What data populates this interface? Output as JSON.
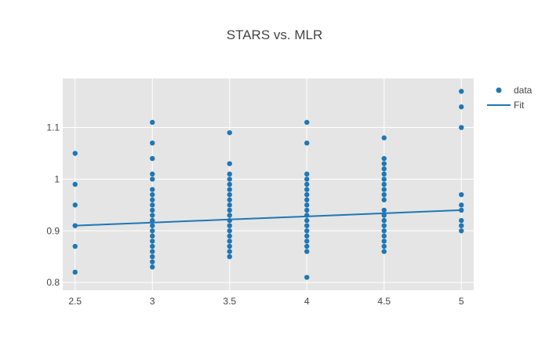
{
  "chart_data": {
    "type": "scatter",
    "title": "STARS vs. MLR",
    "xlabel": "",
    "ylabel": "",
    "xlim": [
      2.42,
      5.08
    ],
    "ylim": [
      0.785,
      1.195
    ],
    "x_ticks": [
      2.5,
      3,
      3.5,
      4,
      4.5,
      5
    ],
    "x_tick_labels": [
      "2.5",
      "3",
      "3.5",
      "4",
      "4.5",
      "5"
    ],
    "y_ticks": [
      0.8,
      0.9,
      1.0,
      1.1
    ],
    "y_tick_labels": [
      "0.8",
      "0.9",
      "1",
      "1.1"
    ],
    "grid": true,
    "legend": {
      "position": "top-right",
      "entries": [
        "data",
        "Fit"
      ]
    },
    "series": [
      {
        "name": "data",
        "mode": "markers",
        "color": "#1f77b4",
        "points": [
          [
            2.5,
            1.05
          ],
          [
            2.5,
            0.99
          ],
          [
            2.5,
            0.95
          ],
          [
            2.5,
            0.91
          ],
          [
            2.5,
            0.87
          ],
          [
            2.5,
            0.82
          ],
          [
            3,
            1.11
          ],
          [
            3,
            1.07
          ],
          [
            3,
            1.04
          ],
          [
            3,
            1.01
          ],
          [
            3,
            1.0
          ],
          [
            3,
            0.98
          ],
          [
            3,
            0.97
          ],
          [
            3,
            0.96
          ],
          [
            3,
            0.95
          ],
          [
            3,
            0.94
          ],
          [
            3,
            0.93
          ],
          [
            3,
            0.92
          ],
          [
            3,
            0.91
          ],
          [
            3,
            0.9
          ],
          [
            3,
            0.89
          ],
          [
            3,
            0.88
          ],
          [
            3,
            0.87
          ],
          [
            3,
            0.86
          ],
          [
            3,
            0.85
          ],
          [
            3,
            0.84
          ],
          [
            3,
            0.83
          ],
          [
            3.5,
            1.09
          ],
          [
            3.5,
            1.03
          ],
          [
            3.5,
            1.01
          ],
          [
            3.5,
            1.0
          ],
          [
            3.5,
            0.99
          ],
          [
            3.5,
            0.98
          ],
          [
            3.5,
            0.97
          ],
          [
            3.5,
            0.96
          ],
          [
            3.5,
            0.95
          ],
          [
            3.5,
            0.94
          ],
          [
            3.5,
            0.93
          ],
          [
            3.5,
            0.92
          ],
          [
            3.5,
            0.91
          ],
          [
            3.5,
            0.9
          ],
          [
            3.5,
            0.89
          ],
          [
            3.5,
            0.88
          ],
          [
            3.5,
            0.87
          ],
          [
            3.5,
            0.86
          ],
          [
            3.5,
            0.85
          ],
          [
            4,
            1.11
          ],
          [
            4,
            1.07
          ],
          [
            4,
            1.01
          ],
          [
            4,
            1.0
          ],
          [
            4,
            0.99
          ],
          [
            4,
            0.98
          ],
          [
            4,
            0.97
          ],
          [
            4,
            0.96
          ],
          [
            4,
            0.95
          ],
          [
            4,
            0.94
          ],
          [
            4,
            0.93
          ],
          [
            4,
            0.92
          ],
          [
            4,
            0.91
          ],
          [
            4,
            0.9
          ],
          [
            4,
            0.89
          ],
          [
            4,
            0.88
          ],
          [
            4,
            0.87
          ],
          [
            4,
            0.86
          ],
          [
            4,
            0.81
          ],
          [
            4.5,
            1.08
          ],
          [
            4.5,
            1.04
          ],
          [
            4.5,
            1.03
          ],
          [
            4.5,
            1.02
          ],
          [
            4.5,
            1.01
          ],
          [
            4.5,
            1.0
          ],
          [
            4.5,
            0.99
          ],
          [
            4.5,
            0.98
          ],
          [
            4.5,
            0.97
          ],
          [
            4.5,
            0.96
          ],
          [
            4.5,
            0.94
          ],
          [
            4.5,
            0.93
          ],
          [
            4.5,
            0.92
          ],
          [
            4.5,
            0.91
          ],
          [
            4.5,
            0.9
          ],
          [
            4.5,
            0.89
          ],
          [
            4.5,
            0.88
          ],
          [
            4.5,
            0.87
          ],
          [
            4.5,
            0.86
          ],
          [
            5,
            1.17
          ],
          [
            5,
            1.14
          ],
          [
            5,
            1.1
          ],
          [
            5,
            0.97
          ],
          [
            5,
            0.95
          ],
          [
            5,
            0.94
          ],
          [
            5,
            0.92
          ],
          [
            5,
            0.91
          ],
          [
            5,
            0.9
          ]
        ]
      },
      {
        "name": "Fit",
        "mode": "lines",
        "color": "#1f77b4",
        "x": [
          2.5,
          3,
          3.5,
          4,
          4.5,
          5
        ],
        "y": [
          0.91,
          0.916,
          0.922,
          0.928,
          0.934,
          0.94
        ]
      }
    ]
  }
}
